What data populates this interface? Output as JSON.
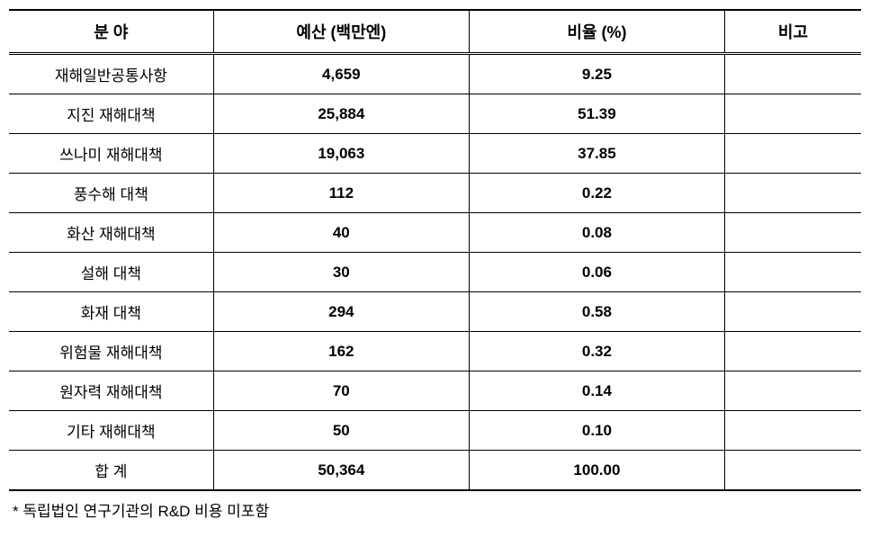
{
  "table": {
    "type": "table",
    "columns": [
      {
        "key": "field",
        "label": "분 야",
        "width_pct": 24,
        "align": "center"
      },
      {
        "key": "budget",
        "label": "예산 (백만엔)",
        "width_pct": 30,
        "align": "center",
        "bold_values": true
      },
      {
        "key": "ratio",
        "label": "비율 (%)",
        "width_pct": 30,
        "align": "center",
        "bold_values": true
      },
      {
        "key": "note",
        "label": "비고",
        "width_pct": 16,
        "align": "center"
      }
    ],
    "rows": [
      {
        "field": "재해일반공통사항",
        "budget": "4,659",
        "ratio": "9.25",
        "note": ""
      },
      {
        "field": "지진 재해대책",
        "budget": "25,884",
        "ratio": "51.39",
        "note": ""
      },
      {
        "field": "쓰나미 재해대책",
        "budget": "19,063",
        "ratio": "37.85",
        "note": ""
      },
      {
        "field": "풍수해 대책",
        "budget": "112",
        "ratio": "0.22",
        "note": ""
      },
      {
        "field": "화산 재해대책",
        "budget": "40",
        "ratio": "0.08",
        "note": ""
      },
      {
        "field": "설해 대책",
        "budget": "30",
        "ratio": "0.06",
        "note": ""
      },
      {
        "field": "화재 대책",
        "budget": "294",
        "ratio": "0.58",
        "note": ""
      },
      {
        "field": "위험물 재해대책",
        "budget": "162",
        "ratio": "0.32",
        "note": ""
      },
      {
        "field": "원자력 재해대책",
        "budget": "70",
        "ratio": "0.14",
        "note": ""
      },
      {
        "field": "기타 재해대책",
        "budget": "50",
        "ratio": "0.10",
        "note": ""
      },
      {
        "field": "합 계",
        "budget": "50,364",
        "ratio": "100.00",
        "note": ""
      }
    ],
    "footnote": "* 독립법인 연구기관의 R&D 비용 미포함",
    "styling": {
      "border_color": "#000000",
      "background_color": "#ffffff",
      "header_fontsize": 18,
      "cell_fontsize": 17,
      "header_font_weight": "bold",
      "top_border_width": 2,
      "bottom_border_width": 2,
      "header_separator": "double"
    }
  }
}
